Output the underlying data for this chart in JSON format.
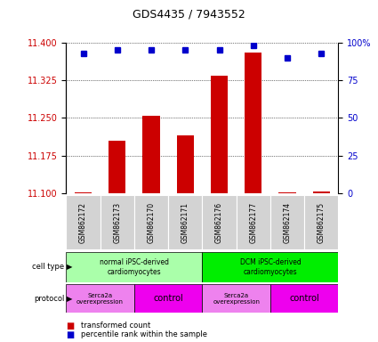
{
  "title": "GDS4435 / 7943552",
  "samples": [
    "GSM862172",
    "GSM862173",
    "GSM862170",
    "GSM862171",
    "GSM862176",
    "GSM862177",
    "GSM862174",
    "GSM862175"
  ],
  "red_values": [
    11.102,
    11.205,
    11.255,
    11.215,
    11.335,
    11.38,
    11.101,
    11.103
  ],
  "blue_values": [
    93,
    95,
    95,
    95,
    95,
    98,
    90,
    93
  ],
  "ylim_left": [
    11.1,
    11.4
  ],
  "ylim_right": [
    0,
    100
  ],
  "yticks_left": [
    11.1,
    11.175,
    11.25,
    11.325,
    11.4
  ],
  "yticks_right": [
    0,
    25,
    50,
    75,
    100
  ],
  "ytick_labels_right": [
    "0",
    "25",
    "50",
    "75",
    "100%"
  ],
  "red_color": "#CC0000",
  "blue_color": "#0000CC",
  "bar_width": 0.5,
  "tick_label_color_left": "#CC0000",
  "tick_label_color_right": "#0000CC",
  "cell_groups": [
    {
      "label": "normal iPSC-derived\ncardiomyocytes",
      "start": 0,
      "end": 4,
      "color": "#aaffaa"
    },
    {
      "label": "DCM iPSC-derived\ncardiomyocytes",
      "start": 4,
      "end": 8,
      "color": "#00ee00"
    }
  ],
  "prot_groups": [
    {
      "label": "Serca2a\noverexpression",
      "start": 0,
      "end": 2,
      "color": "#ee82ee",
      "fontsize": 5
    },
    {
      "label": "control",
      "start": 2,
      "end": 4,
      "color": "#ee00ee",
      "fontsize": 7
    },
    {
      "label": "Serca2a\noverexpression",
      "start": 4,
      "end": 6,
      "color": "#ee82ee",
      "fontsize": 5
    },
    {
      "label": "control",
      "start": 6,
      "end": 8,
      "color": "#ee00ee",
      "fontsize": 7
    }
  ]
}
